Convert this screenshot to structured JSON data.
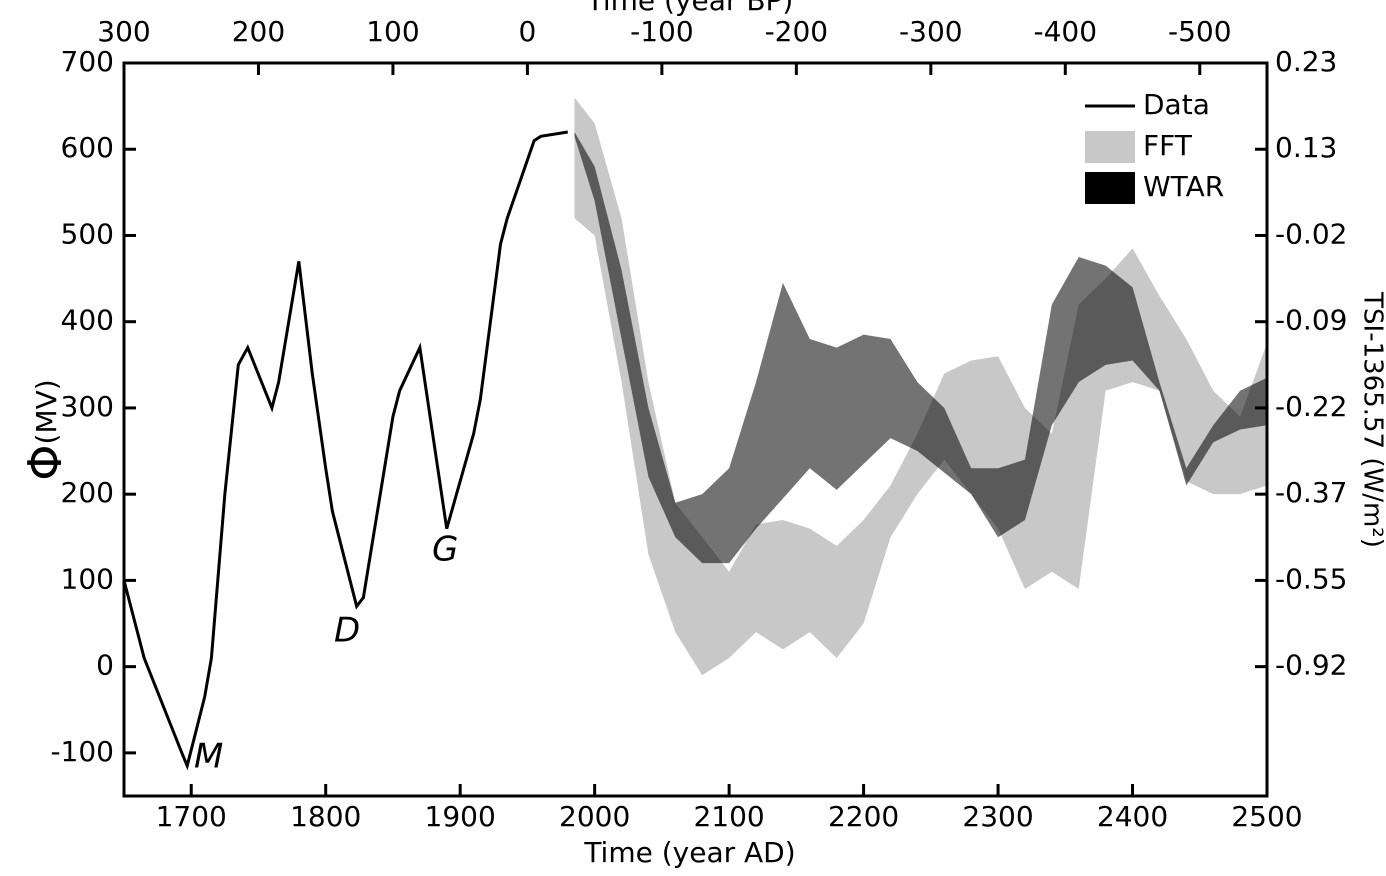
{
  "chart_data": {
    "type": "line_band",
    "xlabel": "Time (year AD)",
    "x2label": "Time (year BP)",
    "ylabel_symbol": "Φ",
    "ylabel_unit": "(MV)",
    "y2label": "TSI-1365.57 (W/m²)",
    "xlim": [
      1650,
      2500
    ],
    "xticks": [
      1700,
      1800,
      1900,
      2000,
      2100,
      2200,
      2300,
      2400,
      2500
    ],
    "x2lim": [
      300,
      -550
    ],
    "x2ticks": [
      300,
      200,
      100,
      0,
      -100,
      -200,
      -300,
      -400,
      -500
    ],
    "ylim": [
      -150,
      700
    ],
    "yticks": [
      -100,
      0,
      100,
      200,
      300,
      400,
      500,
      600,
      700
    ],
    "y2ticks": [
      -0.92,
      -0.55,
      -0.37,
      -0.22,
      -0.09,
      -0.02,
      0.13,
      0.23
    ],
    "annotations": [
      "M",
      "D",
      "G"
    ],
    "series": [
      {
        "name": "Data",
        "color": "#000000",
        "x": [
          1650,
          1665,
          1693,
          1697,
          1710,
          1715,
          1725,
          1735,
          1742,
          1760,
          1765,
          1780,
          1790,
          1800,
          1805,
          1823,
          1828,
          1850,
          1855,
          1870,
          1890,
          1910,
          1915,
          1930,
          1935,
          1955,
          1960,
          1980
        ],
        "values": [
          100,
          10,
          -100,
          -115,
          -35,
          10,
          200,
          350,
          370,
          300,
          330,
          470,
          340,
          230,
          180,
          70,
          80,
          290,
          320,
          370,
          160,
          270,
          310,
          490,
          520,
          610,
          615,
          620
        ]
      },
      {
        "name": "FFT",
        "color": "#c8c8c8",
        "opacity": 1,
        "x": [
          1985,
          2000,
          2020,
          2040,
          2060,
          2080,
          2100,
          2120,
          2140,
          2160,
          2180,
          2200,
          2220,
          2240,
          2260,
          2280,
          2300,
          2320,
          2340,
          2360,
          2380,
          2400,
          2420,
          2440,
          2460,
          2480,
          2500
        ],
        "lower": [
          520,
          500,
          330,
          130,
          40,
          -10,
          10,
          40,
          20,
          40,
          10,
          50,
          150,
          200,
          240,
          200,
          160,
          90,
          110,
          90,
          320,
          330,
          320,
          215,
          200,
          200,
          210
        ],
        "upper": [
          660,
          630,
          520,
          330,
          190,
          150,
          110,
          165,
          170,
          160,
          140,
          170,
          210,
          270,
          340,
          355,
          360,
          300,
          270,
          420,
          450,
          485,
          430,
          380,
          320,
          290,
          375
        ]
      },
      {
        "name": "WTAR",
        "color": "#000000",
        "opacity": 0.55,
        "x": [
          1985,
          2000,
          2020,
          2040,
          2060,
          2080,
          2100,
          2120,
          2140,
          2160,
          2180,
          2200,
          2220,
          2240,
          2260,
          2280,
          2300,
          2320,
          2340,
          2360,
          2380,
          2400,
          2420,
          2440,
          2460,
          2480,
          2500
        ],
        "lower": [
          615,
          540,
          380,
          220,
          150,
          120,
          120,
          160,
          195,
          230,
          205,
          235,
          265,
          250,
          225,
          200,
          150,
          170,
          280,
          330,
          350,
          355,
          320,
          210,
          260,
          275,
          280
        ],
        "upper": [
          620,
          580,
          460,
          300,
          190,
          200,
          230,
          330,
          445,
          380,
          370,
          385,
          380,
          330,
          300,
          230,
          230,
          240,
          420,
          475,
          465,
          440,
          330,
          230,
          280,
          320,
          335
        ]
      }
    ]
  }
}
